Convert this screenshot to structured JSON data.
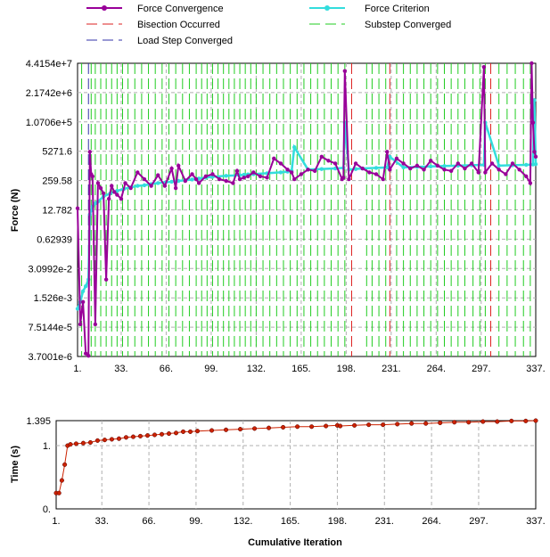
{
  "legend": {
    "force_convergence": "Force Convergence",
    "force_criterion": "Force Criterion",
    "bisection": "Bisection Occurred",
    "substep": "Substep Converged",
    "load_step": "Load Step Converged"
  },
  "colors": {
    "force_convergence": "#990099",
    "force_criterion": "#33dddd",
    "bisection": "#dd2222",
    "substep": "#22cc22",
    "load_step": "#3333aa",
    "time_marker": "#cc2200",
    "grid": "#b0b0b0"
  },
  "chart_data": [
    {
      "type": "line",
      "ylabel": "Force (N)",
      "xlabel": "",
      "y_scale": "log",
      "xlim": [
        1,
        337
      ],
      "ylim": [
        3.7001e-06,
        44154000.0
      ],
      "x_ticks": [
        "1.",
        "33.",
        "66.",
        "99.",
        "132.",
        "165.",
        "198.",
        "231.",
        "264.",
        "297.",
        "337."
      ],
      "y_ticks": [
        "4.4154e+7",
        "2.1742e+6",
        "1.0706e+5",
        "5271.6",
        "259.58",
        "12.782",
        "0.62939",
        "3.0992e-2",
        "1.526e-3",
        "7.5144e-5",
        "3.7001e-6"
      ],
      "load_step_converged_x": [
        9
      ],
      "bisection_x": [
        202,
        230,
        304
      ],
      "substep_converged_x": [
        4,
        11,
        14,
        18,
        22,
        26,
        30,
        34,
        38,
        43,
        48,
        53,
        58,
        63,
        68,
        73,
        78,
        83,
        88,
        92,
        96,
        100,
        104,
        108,
        112,
        116,
        120,
        124,
        128,
        132,
        137,
        142,
        147,
        152,
        157,
        162,
        167,
        172,
        177,
        182,
        187,
        192,
        197,
        213,
        217,
        222,
        227,
        235,
        240,
        245,
        250,
        255,
        260,
        265,
        270,
        275,
        280,
        285,
        291,
        296,
        300,
        310,
        316,
        322,
        328,
        333
      ],
      "series": [
        {
          "name": "Force Convergence",
          "x": [
            1,
            3,
            5,
            7,
            9,
            10,
            11,
            12,
            14,
            16,
            18,
            20,
            22,
            24,
            26,
            28,
            30,
            33,
            36,
            40,
            45,
            50,
            55,
            60,
            65,
            70,
            73,
            75,
            80,
            85,
            88,
            90,
            95,
            100,
            105,
            110,
            115,
            118,
            120,
            123,
            126,
            130,
            135,
            140,
            145,
            150,
            155,
            158,
            160,
            165,
            170,
            175,
            180,
            185,
            190,
            195,
            196,
            197,
            200,
            205,
            210,
            215,
            220,
            225,
            228,
            230,
            235,
            240,
            245,
            250,
            255,
            260,
            265,
            270,
            275,
            280,
            285,
            290,
            295,
            299,
            300,
            305,
            310,
            315,
            320,
            325,
            330,
            333,
            334,
            335,
            336,
            337
          ],
          "y": [
            15,
            0.0001,
            0.001,
            5e-06,
            4e-06,
            5000,
            500,
            400,
            0.0001,
            200,
            120,
            70,
            0.01,
            40,
            150,
            80,
            60,
            40,
            200,
            120,
            600,
            300,
            150,
            450,
            150,
            900,
            120,
            1200,
            250,
            500,
            300,
            200,
            400,
            500,
            300,
            250,
            200,
            700,
            300,
            350,
            400,
            600,
            400,
            350,
            2500,
            1500,
            800,
            600,
            300,
            500,
            800,
            700,
            3000,
            2000,
            1500,
            300,
            350,
            20000000.0,
            300,
            1500,
            900,
            600,
            500,
            300,
            5000,
            800,
            2500,
            1500,
            900,
            1200,
            800,
            2000,
            1200,
            800,
            700,
            1500,
            900,
            1500,
            600,
            30000000.0,
            600,
            1500,
            800,
            500,
            1500,
            800,
            400,
            200,
            44154000.0,
            100000.0,
            5000,
            3000
          ]
        },
        {
          "name": "Force Criterion",
          "x": [
            1,
            3,
            5,
            7,
            9,
            10,
            11,
            12,
            14,
            16,
            20,
            25,
            30,
            35,
            40,
            45,
            50,
            55,
            60,
            65,
            70,
            75,
            80,
            85,
            88,
            90,
            95,
            100,
            110,
            120,
            123,
            126,
            130,
            140,
            150,
            155,
            158,
            160,
            170,
            180,
            190,
            196,
            197,
            200,
            205,
            210,
            220,
            228,
            230,
            240,
            250,
            260,
            270,
            280,
            290,
            299,
            300,
            310,
            320,
            330,
            335,
            336,
            337
          ],
          "y": [
            0.0005,
            0.001,
            0.003,
            0.005,
            0.01,
            8,
            12,
            18,
            25,
            30,
            50,
            70,
            90,
            110,
            130,
            150,
            160,
            180,
            200,
            210,
            230,
            250,
            270,
            290,
            300,
            320,
            350,
            380,
            420,
            450,
            470,
            490,
            500,
            550,
            600,
            650,
            700,
            8000,
            800,
            850,
            900,
            950,
            100000.0,
            800,
            850,
            900,
            950,
            1000,
            3000,
            1000,
            1050,
            1100,
            1150,
            1200,
            1250,
            1300,
            100000.0,
            1200,
            1250,
            1300,
            1350,
            1000000.0,
            1400
          ]
        }
      ]
    },
    {
      "type": "line",
      "ylabel": "Time (s)",
      "xlabel": "Cumulative Iteration",
      "xlim": [
        1,
        337
      ],
      "ylim": [
        0,
        1.395
      ],
      "x_ticks": [
        "1.",
        "33.",
        "66.",
        "99.",
        "132.",
        "165.",
        "198.",
        "231.",
        "264.",
        "297.",
        "337."
      ],
      "y_ticks": [
        "1.395",
        "1.",
        "0."
      ],
      "series": [
        {
          "name": "",
          "x": [
            1,
            3,
            5,
            7,
            9,
            11,
            15,
            20,
            25,
            30,
            35,
            40,
            45,
            50,
            55,
            60,
            65,
            70,
            75,
            80,
            85,
            90,
            95,
            100,
            110,
            120,
            130,
            140,
            150,
            160,
            170,
            180,
            190,
            198,
            200,
            210,
            220,
            230,
            240,
            250,
            260,
            270,
            280,
            290,
            300,
            310,
            320,
            330,
            337
          ],
          "y": [
            0.25,
            0.25,
            0.45,
            0.7,
            1.0,
            1.02,
            1.03,
            1.04,
            1.05,
            1.08,
            1.09,
            1.1,
            1.11,
            1.13,
            1.14,
            1.15,
            1.16,
            1.17,
            1.18,
            1.19,
            1.2,
            1.22,
            1.22,
            1.23,
            1.24,
            1.25,
            1.26,
            1.27,
            1.28,
            1.29,
            1.3,
            1.3,
            1.31,
            1.32,
            1.31,
            1.32,
            1.33,
            1.33,
            1.34,
            1.35,
            1.35,
            1.36,
            1.37,
            1.37,
            1.38,
            1.38,
            1.39,
            1.39,
            1.395
          ]
        }
      ]
    }
  ]
}
